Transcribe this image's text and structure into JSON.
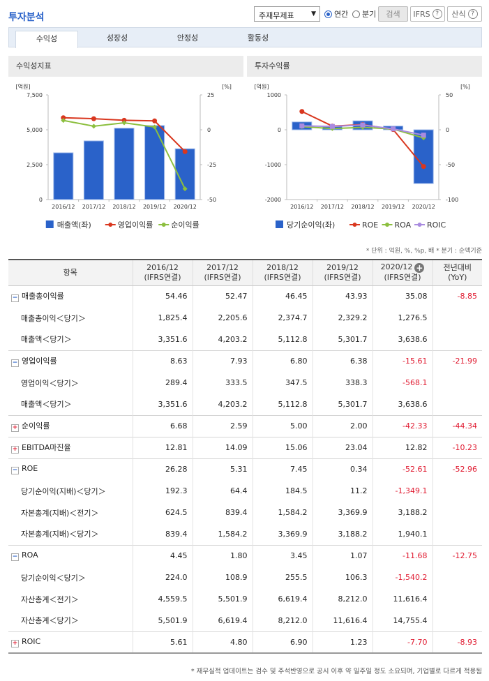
{
  "header": {
    "title": "투자분석",
    "select_value": "주재무제표",
    "radio_annual": "연간",
    "radio_quarter": "분기",
    "search_btn": "검색",
    "ifrs_btn": "IFRS",
    "formula_btn": "산식",
    "help_glyph": "?"
  },
  "tabs": [
    "수익성",
    "성장성",
    "안정성",
    "활동성"
  ],
  "colors": {
    "bar": "#2a62c9",
    "red": "#d9371f",
    "green": "#8cbf3f",
    "purple": "#a98be0"
  },
  "chart_data": [
    {
      "type": "bar",
      "title": "수익성지표",
      "categories": [
        "2016/12",
        "2017/12",
        "2018/12",
        "2019/12",
        "2020/12"
      ],
      "yleft_unit": "[억원]",
      "yright_unit": "[%]",
      "yleft_ticks": [
        "7,500",
        "5,000",
        "2,500",
        "0"
      ],
      "yright_ticks": [
        "25",
        "0",
        "-25",
        "-50"
      ],
      "ylim_left": [
        0,
        7500
      ],
      "ylim_right": [
        -50,
        25
      ],
      "series": [
        {
          "name": "매출액(좌)",
          "kind": "bar",
          "axis": "left",
          "values": [
            3351.6,
            4203.2,
            5112.8,
            5301.7,
            3638.6
          ]
        },
        {
          "name": "영업이익률",
          "kind": "line",
          "axis": "right",
          "values": [
            8.63,
            7.93,
            6.8,
            6.38,
            -15.61
          ]
        },
        {
          "name": "순이익률",
          "kind": "line",
          "axis": "right",
          "values": [
            6.68,
            2.59,
            5.0,
            2.0,
            -42.33
          ]
        }
      ]
    },
    {
      "type": "bar",
      "title": "투자수익률",
      "categories": [
        "2016/12",
        "2017/12",
        "2018/12",
        "2019/12",
        "2020/12"
      ],
      "yleft_unit": "[억원]",
      "yright_unit": "[%]",
      "yleft_ticks": [
        "1000",
        "0",
        "-1000",
        "-2000"
      ],
      "yright_ticks": [
        "50",
        "0",
        "-50",
        "-100"
      ],
      "ylim_left": [
        -2000,
        1000
      ],
      "ylim_right": [
        -100,
        50
      ],
      "series": [
        {
          "name": "당기순이익(좌)",
          "kind": "bar",
          "axis": "left",
          "values": [
            224.0,
            108.9,
            255.5,
            106.3,
            -1540.2
          ]
        },
        {
          "name": "ROE",
          "kind": "line",
          "axis": "right",
          "values": [
            26.28,
            5.31,
            7.45,
            0.34,
            -52.61
          ]
        },
        {
          "name": "ROA",
          "kind": "line",
          "axis": "right",
          "values": [
            4.45,
            1.8,
            3.45,
            1.07,
            -11.68
          ]
        },
        {
          "name": "ROIC",
          "kind": "line",
          "axis": "right",
          "values": [
            5.61,
            4.8,
            6.9,
            1.23,
            -7.7
          ]
        }
      ]
    }
  ],
  "unit_note": "* 단위 : 억원, %, %p, 배   * 분기 : 순액기준",
  "table": {
    "headers": [
      "항목",
      "2016/12\n(IFRS연결)",
      "2017/12\n(IFRS연결)",
      "2018/12\n(IFRS연결)",
      "2019/12\n(IFRS연결)",
      "2020/12\n(IFRS연결)",
      "전년대비\n(YoY)"
    ],
    "rows": [
      {
        "toggle": "minus",
        "label": "매출총이익률",
        "vals": [
          "54.46",
          "52.47",
          "46.45",
          "43.93",
          "35.08",
          "-8.85"
        ]
      },
      {
        "toggle": "",
        "label": "매출총이익＜당기＞",
        "vals": [
          "1,825.4",
          "2,205.6",
          "2,374.7",
          "2,329.2",
          "1,276.5",
          ""
        ]
      },
      {
        "toggle": "",
        "label": "매출액＜당기＞",
        "vals": [
          "3,351.6",
          "4,203.2",
          "5,112.8",
          "5,301.7",
          "3,638.6",
          ""
        ]
      },
      {
        "toggle": "minus",
        "label": "영업이익률",
        "vals": [
          "8.63",
          "7.93",
          "6.80",
          "6.38",
          "-15.61",
          "-21.99"
        ]
      },
      {
        "toggle": "",
        "label": "영업이익＜당기＞",
        "vals": [
          "289.4",
          "333.5",
          "347.5",
          "338.3",
          "-568.1",
          ""
        ]
      },
      {
        "toggle": "",
        "label": "매출액＜당기＞",
        "vals": [
          "3,351.6",
          "4,203.2",
          "5,112.8",
          "5,301.7",
          "3,638.6",
          ""
        ]
      },
      {
        "toggle": "plus",
        "label": "순이익률",
        "vals": [
          "6.68",
          "2.59",
          "5.00",
          "2.00",
          "-42.33",
          "-44.34"
        ]
      },
      {
        "toggle": "plus",
        "label": "EBITDA마진율",
        "vals": [
          "12.81",
          "14.09",
          "15.06",
          "23.04",
          "12.82",
          "-10.23"
        ]
      },
      {
        "toggle": "minus",
        "label": "ROE",
        "vals": [
          "26.28",
          "5.31",
          "7.45",
          "0.34",
          "-52.61",
          "-52.96"
        ]
      },
      {
        "toggle": "",
        "label": "당기순이익(지배)＜당기＞",
        "vals": [
          "192.3",
          "64.4",
          "184.5",
          "11.2",
          "-1,349.1",
          ""
        ]
      },
      {
        "toggle": "",
        "label": "자본총계(지배)＜전기＞",
        "vals": [
          "624.5",
          "839.4",
          "1,584.2",
          "3,369.9",
          "3,188.2",
          ""
        ]
      },
      {
        "toggle": "",
        "label": "자본총계(지배)＜당기＞",
        "vals": [
          "839.4",
          "1,584.2",
          "3,369.9",
          "3,188.2",
          "1,940.1",
          ""
        ]
      },
      {
        "toggle": "minus",
        "label": "ROA",
        "vals": [
          "4.45",
          "1.80",
          "3.45",
          "1.07",
          "-11.68",
          "-12.75"
        ]
      },
      {
        "toggle": "",
        "label": "당기순이익＜당기＞",
        "vals": [
          "224.0",
          "108.9",
          "255.5",
          "106.3",
          "-1,540.2",
          ""
        ]
      },
      {
        "toggle": "",
        "label": "자산총계＜전기＞",
        "vals": [
          "4,559.5",
          "5,501.9",
          "6,619.4",
          "8,212.0",
          "11,616.4",
          ""
        ]
      },
      {
        "toggle": "",
        "label": "자산총계＜당기＞",
        "vals": [
          "5,501.9",
          "6,619.4",
          "8,212.0",
          "11,616.4",
          "14,755.4",
          ""
        ]
      },
      {
        "toggle": "plus",
        "label": "ROIC",
        "vals": [
          "5.61",
          "4.80",
          "6.90",
          "1.23",
          "-7.70",
          "-8.93"
        ]
      }
    ]
  },
  "footnote": "* 재무실적 업데이트는 검수 및 주석반영으로 공시 이후 약 일주일 정도 소요되며, 기업별로 다르게 적용됨"
}
